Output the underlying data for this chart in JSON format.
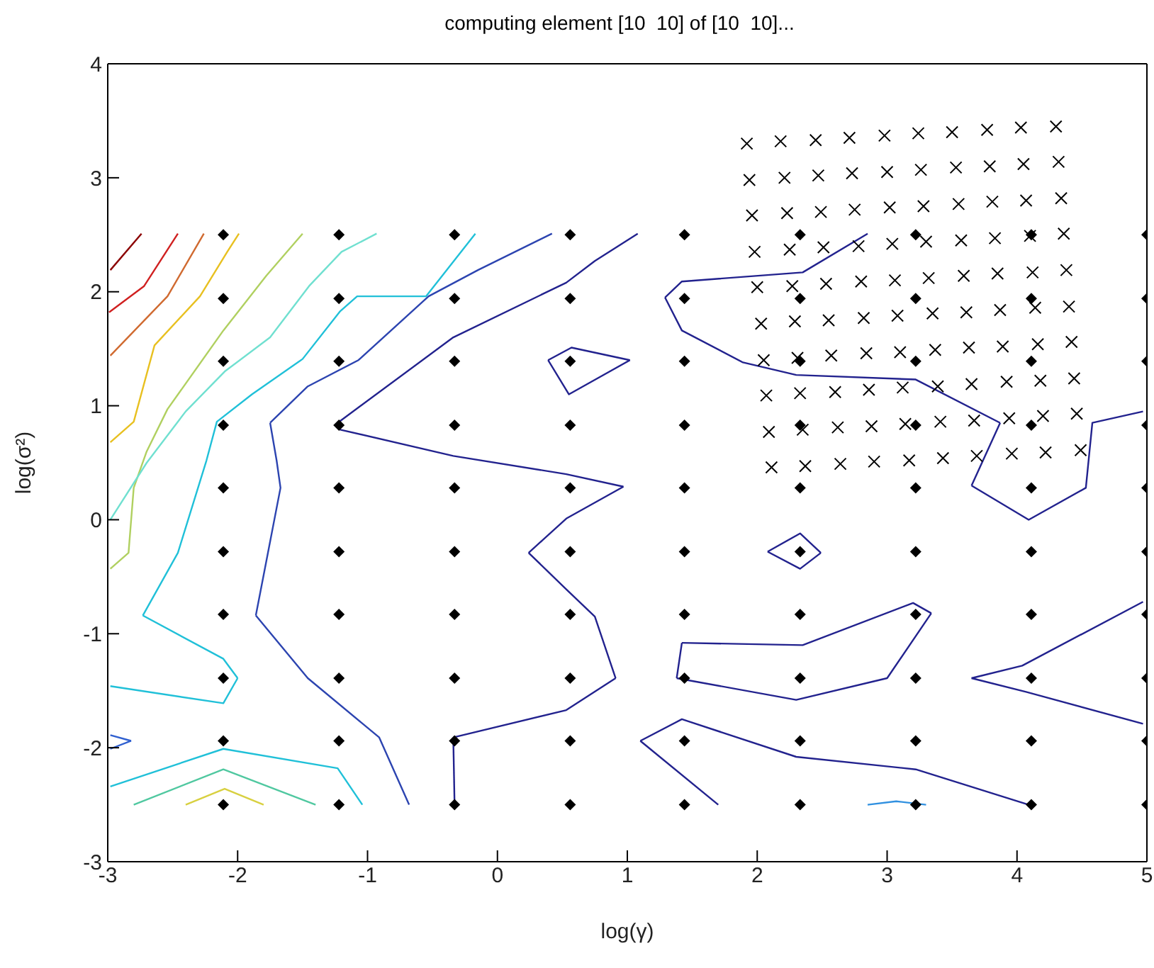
{
  "chart_data": {
    "type": "line",
    "title": "computing element [10  10] of [10  10]...",
    "xlabel": "log(γ)",
    "ylabel": "log(σ²)",
    "xlim": [
      -3,
      5
    ],
    "ylim": [
      -3,
      4
    ],
    "xticks": [
      -3,
      -2,
      -1,
      0,
      1,
      2,
      3,
      4,
      5
    ],
    "yticks": [
      -3,
      -2,
      -1,
      0,
      1,
      2,
      3,
      4
    ],
    "series": [
      {
        "color": "#8b0000",
        "x": [
          -2.98,
          -2.74
        ],
        "values": [
          2.19,
          2.51
        ]
      },
      {
        "color": "#d02020",
        "x": [
          -2.99,
          -2.72,
          -2.46
        ],
        "values": [
          1.82,
          2.05,
          2.51
        ]
      },
      {
        "color": "#d06a30",
        "x": [
          -2.98,
          -2.54,
          -2.26
        ],
        "values": [
          1.44,
          1.96,
          2.51
        ]
      },
      {
        "color": "#e8c020",
        "x": [
          -2.98,
          -2.8,
          -2.64,
          -2.29,
          -2.08,
          -1.99
        ],
        "values": [
          0.68,
          0.86,
          1.53,
          1.96,
          2.35,
          2.51
        ]
      },
      {
        "color": "#b0d060",
        "x": [
          -2.98,
          -2.84,
          -2.8,
          -2.7,
          -2.54,
          -2.11,
          -1.78,
          -1.5
        ],
        "values": [
          -0.43,
          -0.29,
          0.28,
          0.6,
          0.97,
          1.66,
          2.14,
          2.51
        ]
      },
      {
        "color": "#70e0d0",
        "x": [
          -2.98,
          -2.7,
          -2.4,
          -2.1,
          -1.75,
          -1.45,
          -1.2,
          -0.93
        ],
        "values": [
          0.0,
          0.5,
          0.95,
          1.3,
          1.6,
          2.05,
          2.35,
          2.51
        ]
      },
      {
        "color": "#20c0d8",
        "x": [
          -2.98,
          -2.11,
          -2.0
        ],
        "values": [
          -1.46,
          -1.61,
          -1.39
        ]
      },
      {
        "color": "#20c0d8",
        "x": [
          -2.0,
          -2.11,
          -2.73
        ],
        "values": [
          -1.39,
          -1.22,
          -0.84
        ]
      },
      {
        "color": "#20c0d8",
        "x": [
          -2.73,
          -2.46,
          -2.24,
          -2.16,
          -1.89,
          -1.5,
          -1.21,
          -1.08,
          -0.55,
          -0.17
        ],
        "values": [
          -0.84,
          -0.29,
          0.52,
          0.86,
          1.1,
          1.41,
          1.83,
          1.96,
          1.96,
          2.51
        ]
      },
      {
        "color": "#20c0d8",
        "x": [
          -2.98,
          -2.11,
          -1.23,
          -1.04
        ],
        "values": [
          -2.34,
          -2.01,
          -2.18,
          -2.5
        ]
      },
      {
        "color": "#50c8a0",
        "x": [
          -2.8,
          -2.11,
          -1.4
        ],
        "values": [
          -2.5,
          -2.19,
          -2.5
        ]
      },
      {
        "color": "#d8d040",
        "x": [
          -2.4,
          -2.1,
          -1.8
        ],
        "values": [
          -2.5,
          -2.36,
          -2.5
        ]
      },
      {
        "color": "#3060d0",
        "x": [
          -2.98,
          -2.82
        ],
        "values": [
          -1.89,
          -1.94
        ]
      },
      {
        "color": "#3060d0",
        "x": [
          -2.82,
          -2.98
        ],
        "values": [
          -1.94,
          -2.01
        ]
      },
      {
        "color": "#2c44b0",
        "x": [
          -0.68,
          -0.91,
          -1.46,
          -1.86
        ],
        "values": [
          -2.5,
          -1.91,
          -1.39,
          -0.84
        ]
      },
      {
        "color": "#2c44b0",
        "x": [
          -1.86,
          -1.67,
          -1.7,
          -1.75
        ],
        "values": [
          -0.84,
          0.28,
          0.52,
          0.85
        ]
      },
      {
        "color": "#2c44b0",
        "x": [
          -1.75,
          -1.46,
          -1.07,
          -0.53,
          -0.15,
          0.42
        ],
        "values": [
          0.85,
          1.17,
          1.4,
          1.96,
          2.19,
          2.51
        ]
      },
      {
        "color": "#22228e",
        "x": [
          1.08,
          0.75,
          0.53,
          -0.34,
          -1.23
        ],
        "values": [
          2.51,
          2.27,
          2.08,
          1.6,
          0.85
        ]
      },
      {
        "color": "#22228e",
        "x": [
          -1.23,
          -1.21,
          -0.34,
          0.53,
          0.97
        ],
        "values": [
          0.85,
          0.79,
          0.56,
          0.4,
          0.29
        ]
      },
      {
        "color": "#22228e",
        "x": [
          0.97,
          0.53,
          0.24
        ],
        "values": [
          0.29,
          0.01,
          -0.29
        ]
      },
      {
        "color": "#22228e",
        "x": [
          0.24,
          0.53,
          0.75,
          0.91
        ],
        "values": [
          -0.29,
          -0.61,
          -0.85,
          -1.39
        ]
      },
      {
        "color": "#22228e",
        "x": [
          0.91,
          0.53,
          -0.34
        ],
        "values": [
          -1.39,
          -1.67,
          -1.91
        ]
      },
      {
        "color": "#22228e",
        "x": [
          -0.34,
          -0.33
        ],
        "values": [
          -1.91,
          -2.5
        ]
      },
      {
        "color": "#22228e",
        "x": [
          0.39,
          0.57,
          1.02
        ],
        "values": [
          1.4,
          1.51,
          1.4
        ]
      },
      {
        "color": "#22228e",
        "x": [
          1.02,
          0.55,
          0.39
        ],
        "values": [
          1.4,
          1.1,
          1.4
        ]
      },
      {
        "color": "#22228e",
        "x": [
          2.85,
          2.35,
          1.42,
          1.29
        ],
        "values": [
          2.51,
          2.17,
          2.09,
          1.95
        ]
      },
      {
        "color": "#22228e",
        "x": [
          1.29,
          1.42,
          1.89,
          2.3,
          3.22,
          3.87
        ],
        "values": [
          1.95,
          1.66,
          1.38,
          1.27,
          1.23,
          0.85
        ]
      },
      {
        "color": "#22228e",
        "x": [
          3.87,
          3.65
        ],
        "values": [
          0.85,
          0.3
        ]
      },
      {
        "color": "#22228e",
        "x": [
          3.65,
          4.09,
          4.53,
          4.58,
          4.97
        ],
        "values": [
          0.3,
          0.0,
          0.28,
          0.85,
          0.95
        ]
      },
      {
        "color": "#22228e",
        "x": [
          2.08,
          2.33,
          2.49
        ],
        "values": [
          -0.28,
          -0.12,
          -0.29
        ]
      },
      {
        "color": "#22228e",
        "x": [
          2.49,
          2.33,
          2.08
        ],
        "values": [
          -0.29,
          -0.43,
          -0.28
        ]
      },
      {
        "color": "#22228e",
        "x": [
          1.42,
          1.38
        ],
        "values": [
          -1.08,
          -1.39
        ]
      },
      {
        "color": "#22228e",
        "x": [
          1.38,
          2.3,
          3.0,
          3.34
        ],
        "values": [
          -1.39,
          -1.58,
          -1.39,
          -0.82
        ]
      },
      {
        "color": "#22228e",
        "x": [
          3.34,
          3.2,
          2.35,
          1.42
        ],
        "values": [
          -0.82,
          -0.73,
          -1.1,
          -1.08
        ]
      },
      {
        "color": "#22228e",
        "x": [
          1.7,
          1.1
        ],
        "values": [
          -2.5,
          -1.94
        ]
      },
      {
        "color": "#22228e",
        "x": [
          1.1,
          1.42,
          2.3,
          3.22,
          4.09
        ],
        "values": [
          -1.94,
          -1.75,
          -2.08,
          -2.19,
          -2.5
        ]
      },
      {
        "color": "#22228e",
        "x": [
          4.97,
          4.04,
          3.65
        ],
        "values": [
          -0.72,
          -1.28,
          -1.39
        ]
      },
      {
        "color": "#22228e",
        "x": [
          3.65,
          4.07,
          4.97
        ],
        "values": [
          -1.39,
          -1.51,
          -1.79
        ]
      },
      {
        "color": "#3090e0",
        "x": [
          2.85,
          3.07,
          3.3
        ],
        "values": [
          -2.5,
          -2.47,
          -2.5
        ]
      },
      {
        "type": "scatter",
        "marker": "diamond",
        "color": "#000000",
        "x": [
          -2.11,
          -2.11,
          -2.11,
          -2.11,
          -2.11,
          -2.11,
          -2.11,
          -2.11,
          -2.11,
          -2.11,
          -1.22,
          -1.22,
          -1.22,
          -1.22,
          -1.22,
          -1.22,
          -1.22,
          -1.22,
          -1.22,
          -1.22,
          -0.33,
          -0.33,
          -0.33,
          -0.33,
          -0.33,
          -0.33,
          -0.33,
          -0.33,
          -0.33,
          -0.33,
          0.56,
          0.56,
          0.56,
          0.56,
          0.56,
          0.56,
          0.56,
          0.56,
          0.56,
          0.56,
          1.44,
          1.44,
          1.44,
          1.44,
          1.44,
          1.44,
          1.44,
          1.44,
          1.44,
          1.44,
          2.33,
          2.33,
          2.33,
          2.33,
          2.33,
          2.33,
          2.33,
          2.33,
          2.33,
          2.33,
          3.22,
          3.22,
          3.22,
          3.22,
          3.22,
          3.22,
          3.22,
          3.22,
          3.22,
          3.22,
          4.11,
          4.11,
          4.11,
          4.11,
          4.11,
          4.11,
          4.11,
          4.11,
          4.11,
          4.11,
          5,
          5,
          5,
          5,
          5,
          5,
          5,
          5,
          5,
          5
        ],
        "values": [
          -2.5,
          -1.94,
          -1.39,
          -0.83,
          -0.28,
          0.28,
          0.83,
          1.39,
          1.94,
          2.5,
          -2.5,
          -1.94,
          -1.39,
          -0.83,
          -0.28,
          0.28,
          0.83,
          1.39,
          1.94,
          2.5,
          -2.5,
          -1.94,
          -1.39,
          -0.83,
          -0.28,
          0.28,
          0.83,
          1.39,
          1.94,
          2.5,
          -2.5,
          -1.94,
          -1.39,
          -0.83,
          -0.28,
          0.28,
          0.83,
          1.39,
          1.94,
          2.5,
          -2.5,
          -1.94,
          -1.39,
          -0.83,
          -0.28,
          0.28,
          0.83,
          1.39,
          1.94,
          2.5,
          -2.5,
          -1.94,
          -1.39,
          -0.83,
          -0.28,
          0.28,
          0.83,
          1.39,
          1.94,
          2.5,
          -2.5,
          -1.94,
          -1.39,
          -0.83,
          -0.28,
          0.28,
          0.83,
          1.39,
          1.94,
          2.5,
          -2.5,
          -1.94,
          -1.39,
          -0.83,
          -0.28,
          0.28,
          0.83,
          1.39,
          1.94,
          2.5,
          -2.5,
          -1.94,
          -1.39,
          -0.83,
          -0.28,
          0.28,
          0.83,
          1.39,
          1.94,
          2.5
        ]
      },
      {
        "type": "scatter",
        "marker": "cross",
        "color": "#000000",
        "x": [
          1.92,
          2.18,
          2.45,
          2.71,
          2.98,
          3.24,
          3.5,
          3.77,
          4.03,
          4.3,
          1.94,
          2.21,
          2.47,
          2.73,
          3.0,
          3.26,
          3.53,
          3.79,
          4.05,
          4.32,
          1.96,
          2.23,
          2.49,
          2.75,
          3.02,
          3.28,
          3.55,
          3.81,
          4.07,
          4.34,
          1.98,
          2.25,
          2.51,
          2.78,
          3.04,
          3.3,
          3.57,
          3.83,
          4.1,
          4.36,
          2.0,
          2.27,
          2.53,
          2.8,
          3.06,
          3.32,
          3.59,
          3.85,
          4.12,
          4.38,
          2.03,
          2.29,
          2.55,
          2.82,
          3.08,
          3.35,
          3.61,
          3.87,
          4.14,
          4.4,
          2.05,
          2.31,
          2.57,
          2.84,
          3.1,
          3.37,
          3.63,
          3.89,
          4.16,
          4.42,
          2.07,
          2.33,
          2.6,
          2.86,
          3.12,
          3.39,
          3.65,
          3.92,
          4.18,
          4.44,
          2.09,
          2.35,
          2.62,
          2.88,
          3.14,
          3.41,
          3.67,
          3.94,
          4.2,
          4.46,
          2.11,
          2.37,
          2.64,
          2.9,
          3.17,
          3.43,
          3.69,
          3.96,
          4.22,
          4.49
        ],
        "values": [
          3.3,
          3.32,
          3.33,
          3.35,
          3.37,
          3.39,
          3.4,
          3.42,
          3.44,
          3.45,
          2.98,
          3.0,
          3.02,
          3.04,
          3.05,
          3.07,
          3.09,
          3.1,
          3.12,
          3.14,
          2.67,
          2.69,
          2.7,
          2.72,
          2.74,
          2.75,
          2.77,
          2.79,
          2.8,
          2.82,
          2.35,
          2.37,
          2.39,
          2.4,
          2.42,
          2.44,
          2.45,
          2.47,
          2.49,
          2.51,
          2.04,
          2.05,
          2.07,
          2.09,
          2.1,
          2.12,
          2.14,
          2.16,
          2.17,
          2.19,
          1.72,
          1.74,
          1.75,
          1.77,
          1.79,
          1.81,
          1.82,
          1.84,
          1.86,
          1.87,
          1.4,
          1.42,
          1.44,
          1.46,
          1.47,
          1.49,
          1.51,
          1.52,
          1.54,
          1.56,
          1.09,
          1.11,
          1.12,
          1.14,
          1.16,
          1.17,
          1.19,
          1.21,
          1.22,
          1.24,
          0.77,
          0.79,
          0.81,
          0.82,
          0.84,
          0.86,
          0.87,
          0.89,
          0.91,
          0.93,
          0.46,
          0.47,
          0.49,
          0.51,
          0.52,
          0.54,
          0.56,
          0.58,
          0.59,
          0.61
        ]
      }
    ]
  }
}
